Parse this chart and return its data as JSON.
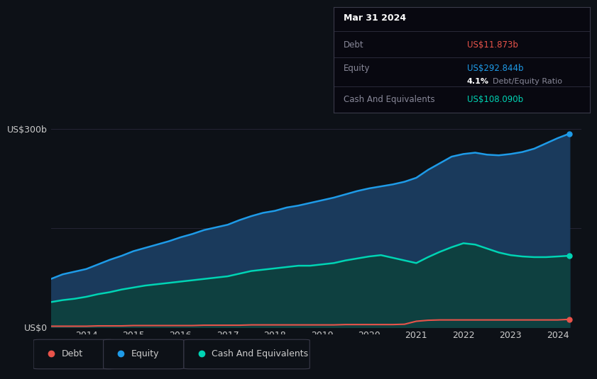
{
  "background_color": "#0d1117",
  "plot_bg_color": "#0d1117",
  "years": [
    2013.25,
    2013.5,
    2013.75,
    2014.0,
    2014.25,
    2014.5,
    2014.75,
    2015.0,
    2015.25,
    2015.5,
    2015.75,
    2016.0,
    2016.25,
    2016.5,
    2016.75,
    2017.0,
    2017.25,
    2017.5,
    2017.75,
    2018.0,
    2018.25,
    2018.5,
    2018.75,
    2019.0,
    2019.25,
    2019.5,
    2019.75,
    2020.0,
    2020.25,
    2020.5,
    2020.75,
    2021.0,
    2021.25,
    2021.5,
    2021.75,
    2022.0,
    2022.25,
    2022.5,
    2022.75,
    2023.0,
    2023.25,
    2023.5,
    2023.75,
    2024.0,
    2024.25
  ],
  "equity": [
    73,
    80,
    84,
    88,
    95,
    102,
    108,
    115,
    120,
    125,
    130,
    136,
    141,
    147,
    151,
    155,
    162,
    168,
    173,
    176,
    181,
    184,
    188,
    192,
    196,
    201,
    206,
    210,
    213,
    216,
    220,
    226,
    238,
    248,
    258,
    262,
    264,
    261,
    260,
    262,
    265,
    270,
    278,
    286,
    292.844
  ],
  "cash": [
    38,
    41,
    43,
    46,
    50,
    53,
    57,
    60,
    63,
    65,
    67,
    69,
    71,
    73,
    75,
    77,
    81,
    85,
    87,
    89,
    91,
    93,
    93,
    95,
    97,
    101,
    104,
    107,
    109,
    105,
    101,
    97,
    106,
    114,
    121,
    127,
    125,
    119,
    113,
    109,
    107,
    106,
    106,
    107,
    108.09
  ],
  "debt": [
    1.5,
    1.5,
    1.5,
    1.5,
    2,
    2,
    2,
    2.5,
    2.5,
    2.5,
    2.5,
    2.5,
    2.5,
    3,
    3,
    3,
    3,
    3.5,
    3.5,
    3.5,
    3.5,
    3.5,
    3.5,
    3.5,
    3.5,
    4,
    4,
    4,
    4,
    4,
    4.5,
    9,
    10.5,
    11,
    11,
    11,
    11,
    11,
    11,
    11,
    11,
    11,
    11,
    11,
    11.873
  ],
  "equity_color": "#1e9be8",
  "equity_fill_top": "#1a3a5c",
  "equity_fill_bottom": "#0d1a2e",
  "cash_color": "#00d4b4",
  "cash_fill_top": "#0e4040",
  "cash_fill_bottom": "#071e1e",
  "debt_color": "#e8534a",
  "grid_color": "#252535",
  "text_color": "#cccccc",
  "xlabel_color": "#888899",
  "ylim": [
    0,
    310
  ],
  "xlim": [
    2013.25,
    2024.5
  ],
  "yticks": [
    0,
    150,
    300
  ],
  "ytick_labels": [
    "US$0",
    "",
    "US$300b"
  ],
  "xtick_labels": [
    "2014",
    "2015",
    "2016",
    "2017",
    "2018",
    "2019",
    "2020",
    "2021",
    "2022",
    "2023",
    "2024"
  ],
  "xtick_positions": [
    2014,
    2015,
    2016,
    2017,
    2018,
    2019,
    2020,
    2021,
    2022,
    2023,
    2024
  ],
  "tooltip_title": "Mar 31 2024",
  "tooltip_debt_label": "Debt",
  "tooltip_debt_value": "US$11.873b",
  "tooltip_equity_label": "Equity",
  "tooltip_equity_value": "US$292.844b",
  "tooltip_ratio_bold": "4.1%",
  "tooltip_ratio_normal": " Debt/Equity Ratio",
  "tooltip_cash_label": "Cash And Equivalents",
  "tooltip_cash_value": "US$108.090b",
  "legend_labels": [
    "Debt",
    "Equity",
    "Cash And Equivalents"
  ],
  "legend_colors": [
    "#e8534a",
    "#1e9be8",
    "#00d4b4"
  ]
}
